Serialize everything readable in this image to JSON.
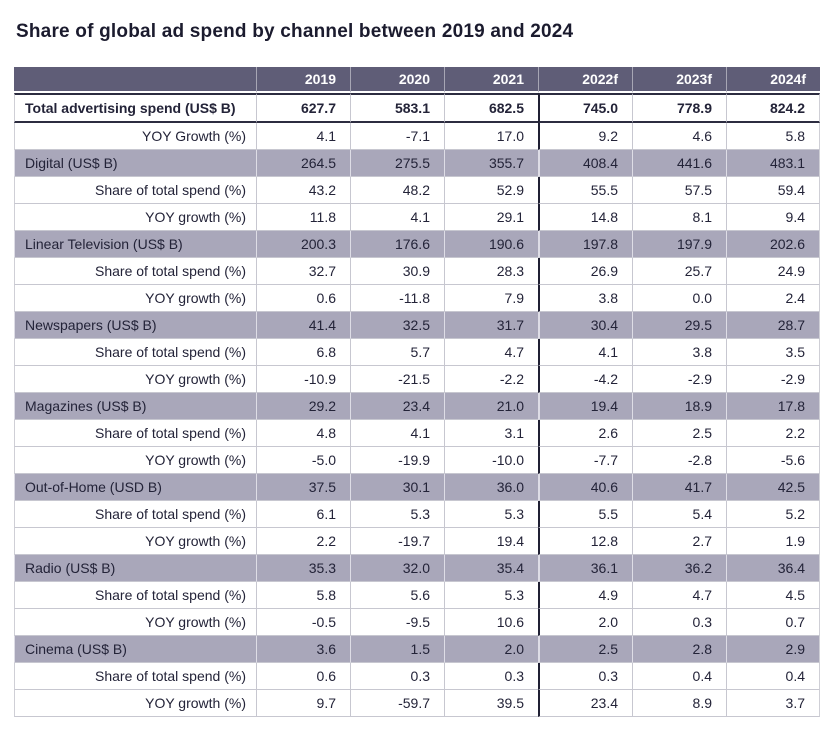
{
  "title": "Share of global ad spend by channel between 2019 and 2024",
  "chart_data": {
    "type": "table",
    "title": "Share of global ad spend by channel between 2019 and 2024",
    "columns": [
      "",
      "2019",
      "2020",
      "2021",
      "2022f",
      "2023f",
      "2024f"
    ],
    "forecast_columns_start": "2022f",
    "rows": [
      {
        "label": "Total advertising spend (US$ B)",
        "row_type": "total",
        "values": [
          "627.7",
          "583.1",
          "682.5",
          "745.0",
          "778.9",
          "824.2"
        ]
      },
      {
        "label": "YOY Growth (%)",
        "row_type": "sub",
        "values": [
          "4.1",
          "-7.1",
          "17.0",
          "9.2",
          "4.6",
          "5.8"
        ]
      },
      {
        "label": "Digital (US$ B)",
        "row_type": "category",
        "values": [
          "264.5",
          "275.5",
          "355.7",
          "408.4",
          "441.6",
          "483.1"
        ]
      },
      {
        "label": "Share of total spend (%)",
        "row_type": "sub",
        "values": [
          "43.2",
          "48.2",
          "52.9",
          "55.5",
          "57.5",
          "59.4"
        ]
      },
      {
        "label": "YOY growth (%)",
        "row_type": "sub",
        "values": [
          "11.8",
          "4.1",
          "29.1",
          "14.8",
          "8.1",
          "9.4"
        ]
      },
      {
        "label": "Linear Television (US$ B)",
        "row_type": "category",
        "values": [
          "200.3",
          "176.6",
          "190.6",
          "197.8",
          "197.9",
          "202.6"
        ]
      },
      {
        "label": "Share of total spend (%)",
        "row_type": "sub",
        "values": [
          "32.7",
          "30.9",
          "28.3",
          "26.9",
          "25.7",
          "24.9"
        ]
      },
      {
        "label": "YOY growth (%)",
        "row_type": "sub",
        "values": [
          "0.6",
          "-11.8",
          "7.9",
          "3.8",
          "0.0",
          "2.4"
        ]
      },
      {
        "label": "Newspapers (US$ B)",
        "row_type": "category",
        "values": [
          "41.4",
          "32.5",
          "31.7",
          "30.4",
          "29.5",
          "28.7"
        ]
      },
      {
        "label": "Share of total spend (%)",
        "row_type": "sub",
        "values": [
          "6.8",
          "5.7",
          "4.7",
          "4.1",
          "3.8",
          "3.5"
        ]
      },
      {
        "label": "YOY growth (%)",
        "row_type": "sub",
        "values": [
          "-10.9",
          "-21.5",
          "-2.2",
          "-4.2",
          "-2.9",
          "-2.9"
        ]
      },
      {
        "label": "Magazines (US$ B)",
        "row_type": "category",
        "values": [
          "29.2",
          "23.4",
          "21.0",
          "19.4",
          "18.9",
          "17.8"
        ]
      },
      {
        "label": "Share of total spend (%)",
        "row_type": "sub",
        "values": [
          "4.8",
          "4.1",
          "3.1",
          "2.6",
          "2.5",
          "2.2"
        ]
      },
      {
        "label": "YOY growth (%)",
        "row_type": "sub",
        "values": [
          "-5.0",
          "-19.9",
          "-10.0",
          "-7.7",
          "-2.8",
          "-5.6"
        ]
      },
      {
        "label": "Out-of-Home (USD B)",
        "row_type": "category",
        "values": [
          "37.5",
          "30.1",
          "36.0",
          "40.6",
          "41.7",
          "42.5"
        ]
      },
      {
        "label": "Share of total spend (%)",
        "row_type": "sub",
        "values": [
          "6.1",
          "5.3",
          "5.3",
          "5.5",
          "5.4",
          "5.2"
        ]
      },
      {
        "label": "YOY growth (%)",
        "row_type": "sub",
        "values": [
          "2.2",
          "-19.7",
          "19.4",
          "12.8",
          "2.7",
          "1.9"
        ]
      },
      {
        "label": "Radio (US$ B)",
        "row_type": "category",
        "values": [
          "35.3",
          "32.0",
          "35.4",
          "36.1",
          "36.2",
          "36.4"
        ]
      },
      {
        "label": "Share of total spend (%)",
        "row_type": "sub",
        "values": [
          "5.8",
          "5.6",
          "5.3",
          "4.9",
          "4.7",
          "4.5"
        ]
      },
      {
        "label": "YOY growth (%)",
        "row_type": "sub",
        "values": [
          "-0.5",
          "-9.5",
          "10.6",
          "2.0",
          "0.3",
          "0.7"
        ]
      },
      {
        "label": "Cinema (US$ B)",
        "row_type": "category",
        "values": [
          "3.6",
          "1.5",
          "2.0",
          "2.5",
          "2.8",
          "2.9"
        ]
      },
      {
        "label": "Share of total spend (%)",
        "row_type": "sub",
        "values": [
          "0.6",
          "0.3",
          "0.3",
          "0.3",
          "0.4",
          "0.4"
        ]
      },
      {
        "label": "YOY growth (%)",
        "row_type": "sub",
        "values": [
          "9.7",
          "-59.7",
          "39.5",
          "23.4",
          "8.9",
          "3.7"
        ]
      }
    ]
  },
  "colors": {
    "header_bg": "#5f5d77",
    "category_row_bg": "#a9a7ba",
    "header_text": "#ffffff",
    "body_text": "#232338",
    "title_text": "#1b1b2e",
    "grid_line": "#c7c7d0",
    "total_row_border": "#2c2c40",
    "forecast_divider": "#202034"
  }
}
